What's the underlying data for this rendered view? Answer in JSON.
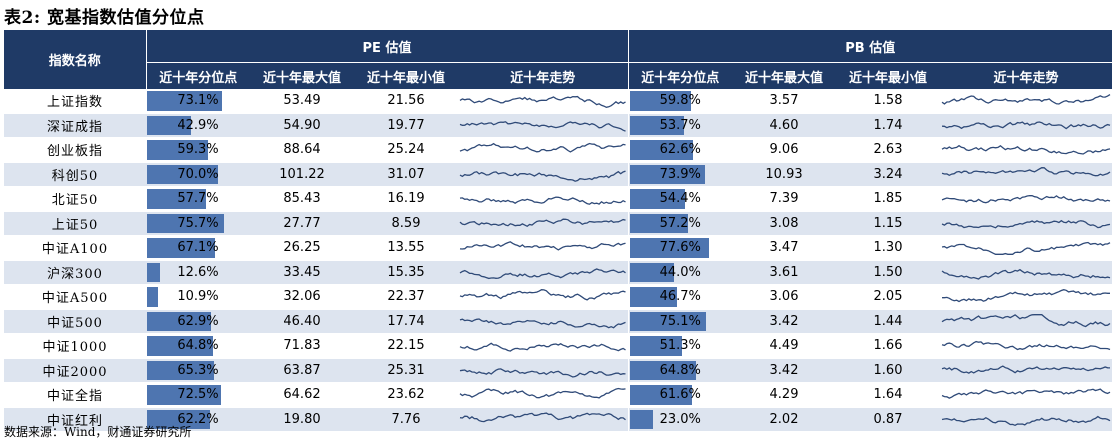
{
  "title": "表2: 宽基指数估值分位点",
  "footer": "数据来源：Wind，财通证券研究所",
  "headers": {
    "name": "指数名称",
    "pe_group": "PE 估值",
    "pb_group": "PB 估值",
    "pct": "近十年分位点",
    "max": "近十年最大值",
    "min": "近十年最小值",
    "trend": "近十年走势"
  },
  "colors": {
    "header_bg": "#1f3a66",
    "bar": "#4e75b0",
    "alt_row": "#dde4ef",
    "sparkline": "#2f4a78"
  },
  "rows": [
    {
      "name": "上证指数",
      "pe_pct": "73.1%",
      "pe_pct_value": 73.1,
      "pe_max": "53.49",
      "pe_min": "21.56",
      "pb_pct": "59.8%",
      "pb_pct_value": 59.8,
      "pb_max": "3.57",
      "pb_min": "1.58"
    },
    {
      "name": "深证成指",
      "pe_pct": "42.9%",
      "pe_pct_value": 42.9,
      "pe_max": "54.90",
      "pe_min": "19.77",
      "pb_pct": "53.7%",
      "pb_pct_value": 53.7,
      "pb_max": "4.60",
      "pb_min": "1.74"
    },
    {
      "name": "创业板指",
      "pe_pct": "59.3%",
      "pe_pct_value": 59.3,
      "pe_max": "88.64",
      "pe_min": "25.24",
      "pb_pct": "62.6%",
      "pb_pct_value": 62.6,
      "pb_max": "9.06",
      "pb_min": "2.63"
    },
    {
      "name": "科创50",
      "pe_pct": "70.0%",
      "pe_pct_value": 70.0,
      "pe_max": "101.22",
      "pe_min": "31.07",
      "pb_pct": "73.9%",
      "pb_pct_value": 73.9,
      "pb_max": "10.93",
      "pb_min": "3.24"
    },
    {
      "name": "北证50",
      "pe_pct": "57.7%",
      "pe_pct_value": 57.7,
      "pe_max": "85.43",
      "pe_min": "16.19",
      "pb_pct": "54.4%",
      "pb_pct_value": 54.4,
      "pb_max": "7.39",
      "pb_min": "1.85"
    },
    {
      "name": "上证50",
      "pe_pct": "75.7%",
      "pe_pct_value": 75.7,
      "pe_max": "27.77",
      "pe_min": "8.59",
      "pb_pct": "57.2%",
      "pb_pct_value": 57.2,
      "pb_max": "3.08",
      "pb_min": "1.15"
    },
    {
      "name": "中证A100",
      "pe_pct": "67.1%",
      "pe_pct_value": 67.1,
      "pe_max": "26.25",
      "pe_min": "13.55",
      "pb_pct": "77.6%",
      "pb_pct_value": 77.6,
      "pb_max": "3.47",
      "pb_min": "1.30"
    },
    {
      "name": "沪深300",
      "pe_pct": "12.6%",
      "pe_pct_value": 12.6,
      "pe_max": "33.45",
      "pe_min": "15.35",
      "pb_pct": "44.0%",
      "pb_pct_value": 44.0,
      "pb_max": "3.61",
      "pb_min": "1.50"
    },
    {
      "name": "中证A500",
      "pe_pct": "10.9%",
      "pe_pct_value": 10.9,
      "pe_max": "32.06",
      "pe_min": "22.37",
      "pb_pct": "46.7%",
      "pb_pct_value": 46.7,
      "pb_max": "3.06",
      "pb_min": "2.05"
    },
    {
      "name": "中证500",
      "pe_pct": "62.9%",
      "pe_pct_value": 62.9,
      "pe_max": "46.40",
      "pe_min": "17.74",
      "pb_pct": "75.1%",
      "pb_pct_value": 75.1,
      "pb_max": "3.42",
      "pb_min": "1.44"
    },
    {
      "name": "中证1000",
      "pe_pct": "64.8%",
      "pe_pct_value": 64.8,
      "pe_max": "71.83",
      "pe_min": "22.15",
      "pb_pct": "51.3%",
      "pb_pct_value": 51.3,
      "pb_max": "4.49",
      "pb_min": "1.66"
    },
    {
      "name": "中证2000",
      "pe_pct": "65.3%",
      "pe_pct_value": 65.3,
      "pe_max": "63.87",
      "pe_min": "25.31",
      "pb_pct": "64.8%",
      "pb_pct_value": 64.8,
      "pb_max": "3.42",
      "pb_min": "1.60"
    },
    {
      "name": "中证全指",
      "pe_pct": "72.5%",
      "pe_pct_value": 72.5,
      "pe_max": "64.62",
      "pe_min": "23.62",
      "pb_pct": "61.6%",
      "pb_pct_value": 61.6,
      "pb_max": "4.29",
      "pb_min": "1.64"
    },
    {
      "name": "中证红利",
      "pe_pct": "62.2%",
      "pe_pct_value": 62.2,
      "pe_max": "19.80",
      "pe_min": "7.76",
      "pb_pct": "23.0%",
      "pb_pct_value": 23.0,
      "pb_max": "2.02",
      "pb_min": "0.87"
    }
  ]
}
